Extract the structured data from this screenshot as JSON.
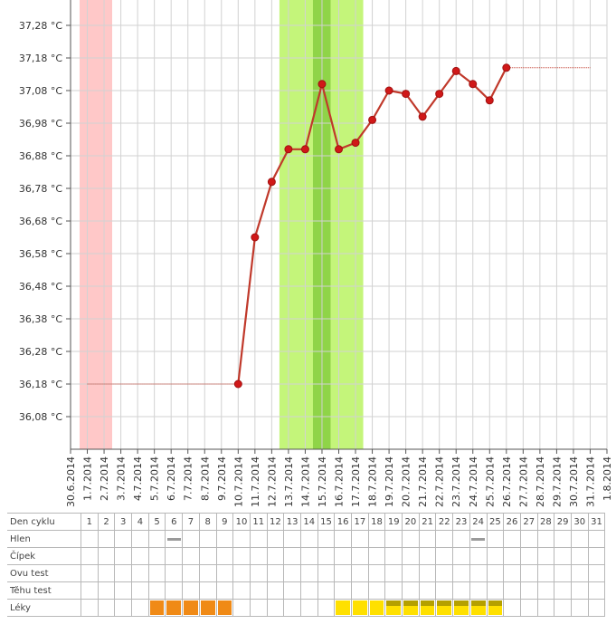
{
  "chart_data": {
    "type": "line",
    "y_unit_suffix": "°C",
    "ylim": [
      35.98,
      37.28
    ],
    "y_ticks": [
      "37,28 °C",
      "37,18 °C",
      "37,08 °C",
      "36,98 °C",
      "36,88 °C",
      "36,78 °C",
      "36,68 °C",
      "36,58 °C",
      "36,48 °C",
      "36,38 °C",
      "36,28 °C",
      "36,18 °C",
      "36,08 °C"
    ],
    "x_ticks": [
      "30.6.2014",
      "1.7.2014",
      "2.7.2014",
      "3.7.2014",
      "4.7.2014",
      "5.7.2014",
      "6.7.2014",
      "7.7.2014",
      "8.7.2014",
      "9.7.2014",
      "10.7.2014",
      "11.7.2014",
      "12.7.2014",
      "13.7.2014",
      "14.7.2014",
      "15.7.2014",
      "16.7.2014",
      "17.7.2014",
      "18.7.2014",
      "19.7.2014",
      "20.7.2014",
      "21.7.2014",
      "22.7.2014",
      "23.7.2014",
      "24.7.2014",
      "25.7.2014",
      "26.7.2014",
      "27.7.2014",
      "28.7.2014",
      "29.7.2014",
      "30.7.2014",
      "31.7.2014",
      "1.8.2014"
    ],
    "grid": true,
    "shaded_ranges": [
      {
        "from": "30.6.2014",
        "to": "2.7.2014",
        "color": "#ffc8c8"
      },
      {
        "from": "13.7.2014",
        "to": "18.7.2014",
        "color": "#c4f57a"
      },
      {
        "from": "15.7.2014",
        "to": "16.7.2014",
        "color": "#8fd448"
      }
    ],
    "baseline_before": {
      "from": "1.7.2014",
      "to": "10.7.2014",
      "value": 36.18
    },
    "baseline_after": {
      "from": "26.7.2014",
      "to": "31.7.2014",
      "value": 37.15
    },
    "series": [
      {
        "color": "#c0392b",
        "points": [
          {
            "x": "10.7.2014",
            "y": 36.18
          },
          {
            "x": "11.7.2014",
            "y": 36.63
          },
          {
            "x": "12.7.2014",
            "y": 36.8
          },
          {
            "x": "13.7.2014",
            "y": 36.9
          },
          {
            "x": "14.7.2014",
            "y": 36.9
          },
          {
            "x": "15.7.2014",
            "y": 37.1
          },
          {
            "x": "16.7.2014",
            "y": 36.9
          },
          {
            "x": "17.7.2014",
            "y": 36.92
          },
          {
            "x": "18.7.2014",
            "y": 36.99
          },
          {
            "x": "19.7.2014",
            "y": 37.08
          },
          {
            "x": "20.7.2014",
            "y": 37.07
          },
          {
            "x": "21.7.2014",
            "y": 37.0
          },
          {
            "x": "22.7.2014",
            "y": 37.07
          },
          {
            "x": "23.7.2014",
            "y": 37.14
          },
          {
            "x": "24.7.2014",
            "y": 37.1
          },
          {
            "x": "25.7.2014",
            "y": 37.05
          },
          {
            "x": "26.7.2014",
            "y": 37.15
          }
        ]
      }
    ]
  },
  "cycle_table": {
    "rows": [
      "Den cyklu",
      "Hlen",
      "Čípek",
      "Ovu test",
      "Těhu test",
      "Léky"
    ],
    "days": [
      "1",
      "2",
      "3",
      "4",
      "5",
      "6",
      "7",
      "8",
      "9",
      "10",
      "11",
      "12",
      "13",
      "14",
      "15",
      "16",
      "17",
      "18",
      "19",
      "20",
      "21",
      "22",
      "23",
      "24",
      "25",
      "26",
      "27",
      "28",
      "29",
      "30",
      "31"
    ],
    "hlen_days": [
      6,
      24
    ],
    "leky": [
      {
        "day": 5,
        "kind": "orange"
      },
      {
        "day": 6,
        "kind": "orange"
      },
      {
        "day": 7,
        "kind": "orange"
      },
      {
        "day": 8,
        "kind": "orange"
      },
      {
        "day": 9,
        "kind": "orange"
      },
      {
        "day": 16,
        "kind": "yellow"
      },
      {
        "day": 17,
        "kind": "yellow"
      },
      {
        "day": 18,
        "kind": "yellow"
      },
      {
        "day": 19,
        "kind": "olive"
      },
      {
        "day": 20,
        "kind": "olive"
      },
      {
        "day": 21,
        "kind": "olive"
      },
      {
        "day": 22,
        "kind": "olive"
      },
      {
        "day": 23,
        "kind": "olive"
      },
      {
        "day": 24,
        "kind": "olive"
      },
      {
        "day": 25,
        "kind": "olive"
      }
    ],
    "colors": {
      "orange": "#f08a16",
      "yellow": "#ffe000",
      "olive": "#b5a000",
      "hlen": "#9a9a9a"
    }
  }
}
